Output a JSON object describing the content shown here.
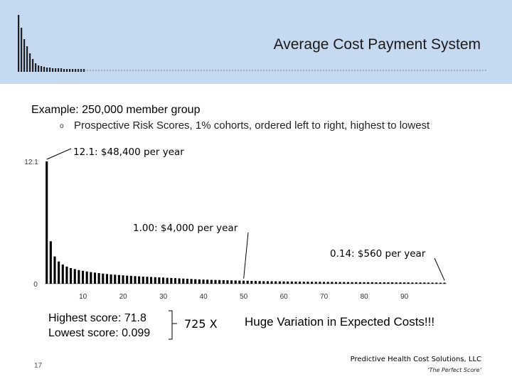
{
  "slide": {
    "title": "Average Cost Payment System",
    "heading": "Example: 250,000 member group",
    "bullet_marker": "o",
    "bullet": "Prospective Risk Scores, 1% cohorts, ordered left to right, highest to lowest",
    "highest": "Highest score: 71.8",
    "lowest": "Lowest score: 0.099",
    "ratio": "725 X",
    "variation": "Huge Variation in Expected Costs!!!",
    "company": "Predictive Health Cost Solutions, LLC",
    "tagline": "‘The Perfect Score’",
    "page_number": "17",
    "header_color": "#c5d9f1"
  },
  "chart_data": {
    "type": "bar",
    "xlabel": "",
    "ylabel": "",
    "x_ticks": [
      "10",
      "20",
      "30",
      "40",
      "50",
      "60",
      "70",
      "80",
      "90"
    ],
    "y_ticks": [
      "0",
      "12.1"
    ],
    "ylim": [
      0,
      12.1
    ],
    "values": [
      12.1,
      4.2,
      2.7,
      2.2,
      1.9,
      1.7,
      1.55,
      1.45,
      1.35,
      1.28,
      1.21,
      1.15,
      1.1,
      1.05,
      1.0,
      0.96,
      0.92,
      0.89,
      0.86,
      0.83,
      0.8,
      0.78,
      0.75,
      0.73,
      0.71,
      0.69,
      0.67,
      0.65,
      0.63,
      0.61,
      0.59,
      0.57,
      0.55,
      0.53,
      0.51,
      0.49,
      0.47,
      0.45,
      0.43,
      0.41,
      0.4,
      0.38,
      0.37,
      0.36,
      0.35,
      0.34,
      0.33,
      0.32,
      0.31,
      0.3,
      0.29,
      0.28,
      0.27,
      0.26,
      0.25,
      0.25,
      0.24,
      0.24,
      0.23,
      0.23,
      0.22,
      0.22,
      0.21,
      0.21,
      0.2,
      0.2,
      0.19,
      0.19,
      0.19,
      0.18,
      0.18,
      0.18,
      0.17,
      0.17,
      0.17,
      0.16,
      0.16,
      0.16,
      0.15,
      0.15,
      0.15,
      0.15,
      0.14,
      0.14,
      0.14,
      0.14,
      0.14,
      0.13,
      0.13,
      0.13,
      0.13,
      0.12,
      0.12,
      0.12,
      0.12,
      0.11,
      0.11,
      0.11,
      0.1,
      0.1
    ],
    "annotations": [
      {
        "text": "12.1: $48,400 per year",
        "x": 1
      },
      {
        "text": "1.00: $4,000 per year",
        "x": 50
      },
      {
        "text": "0.14: $560 per year",
        "x": 100
      }
    ]
  }
}
